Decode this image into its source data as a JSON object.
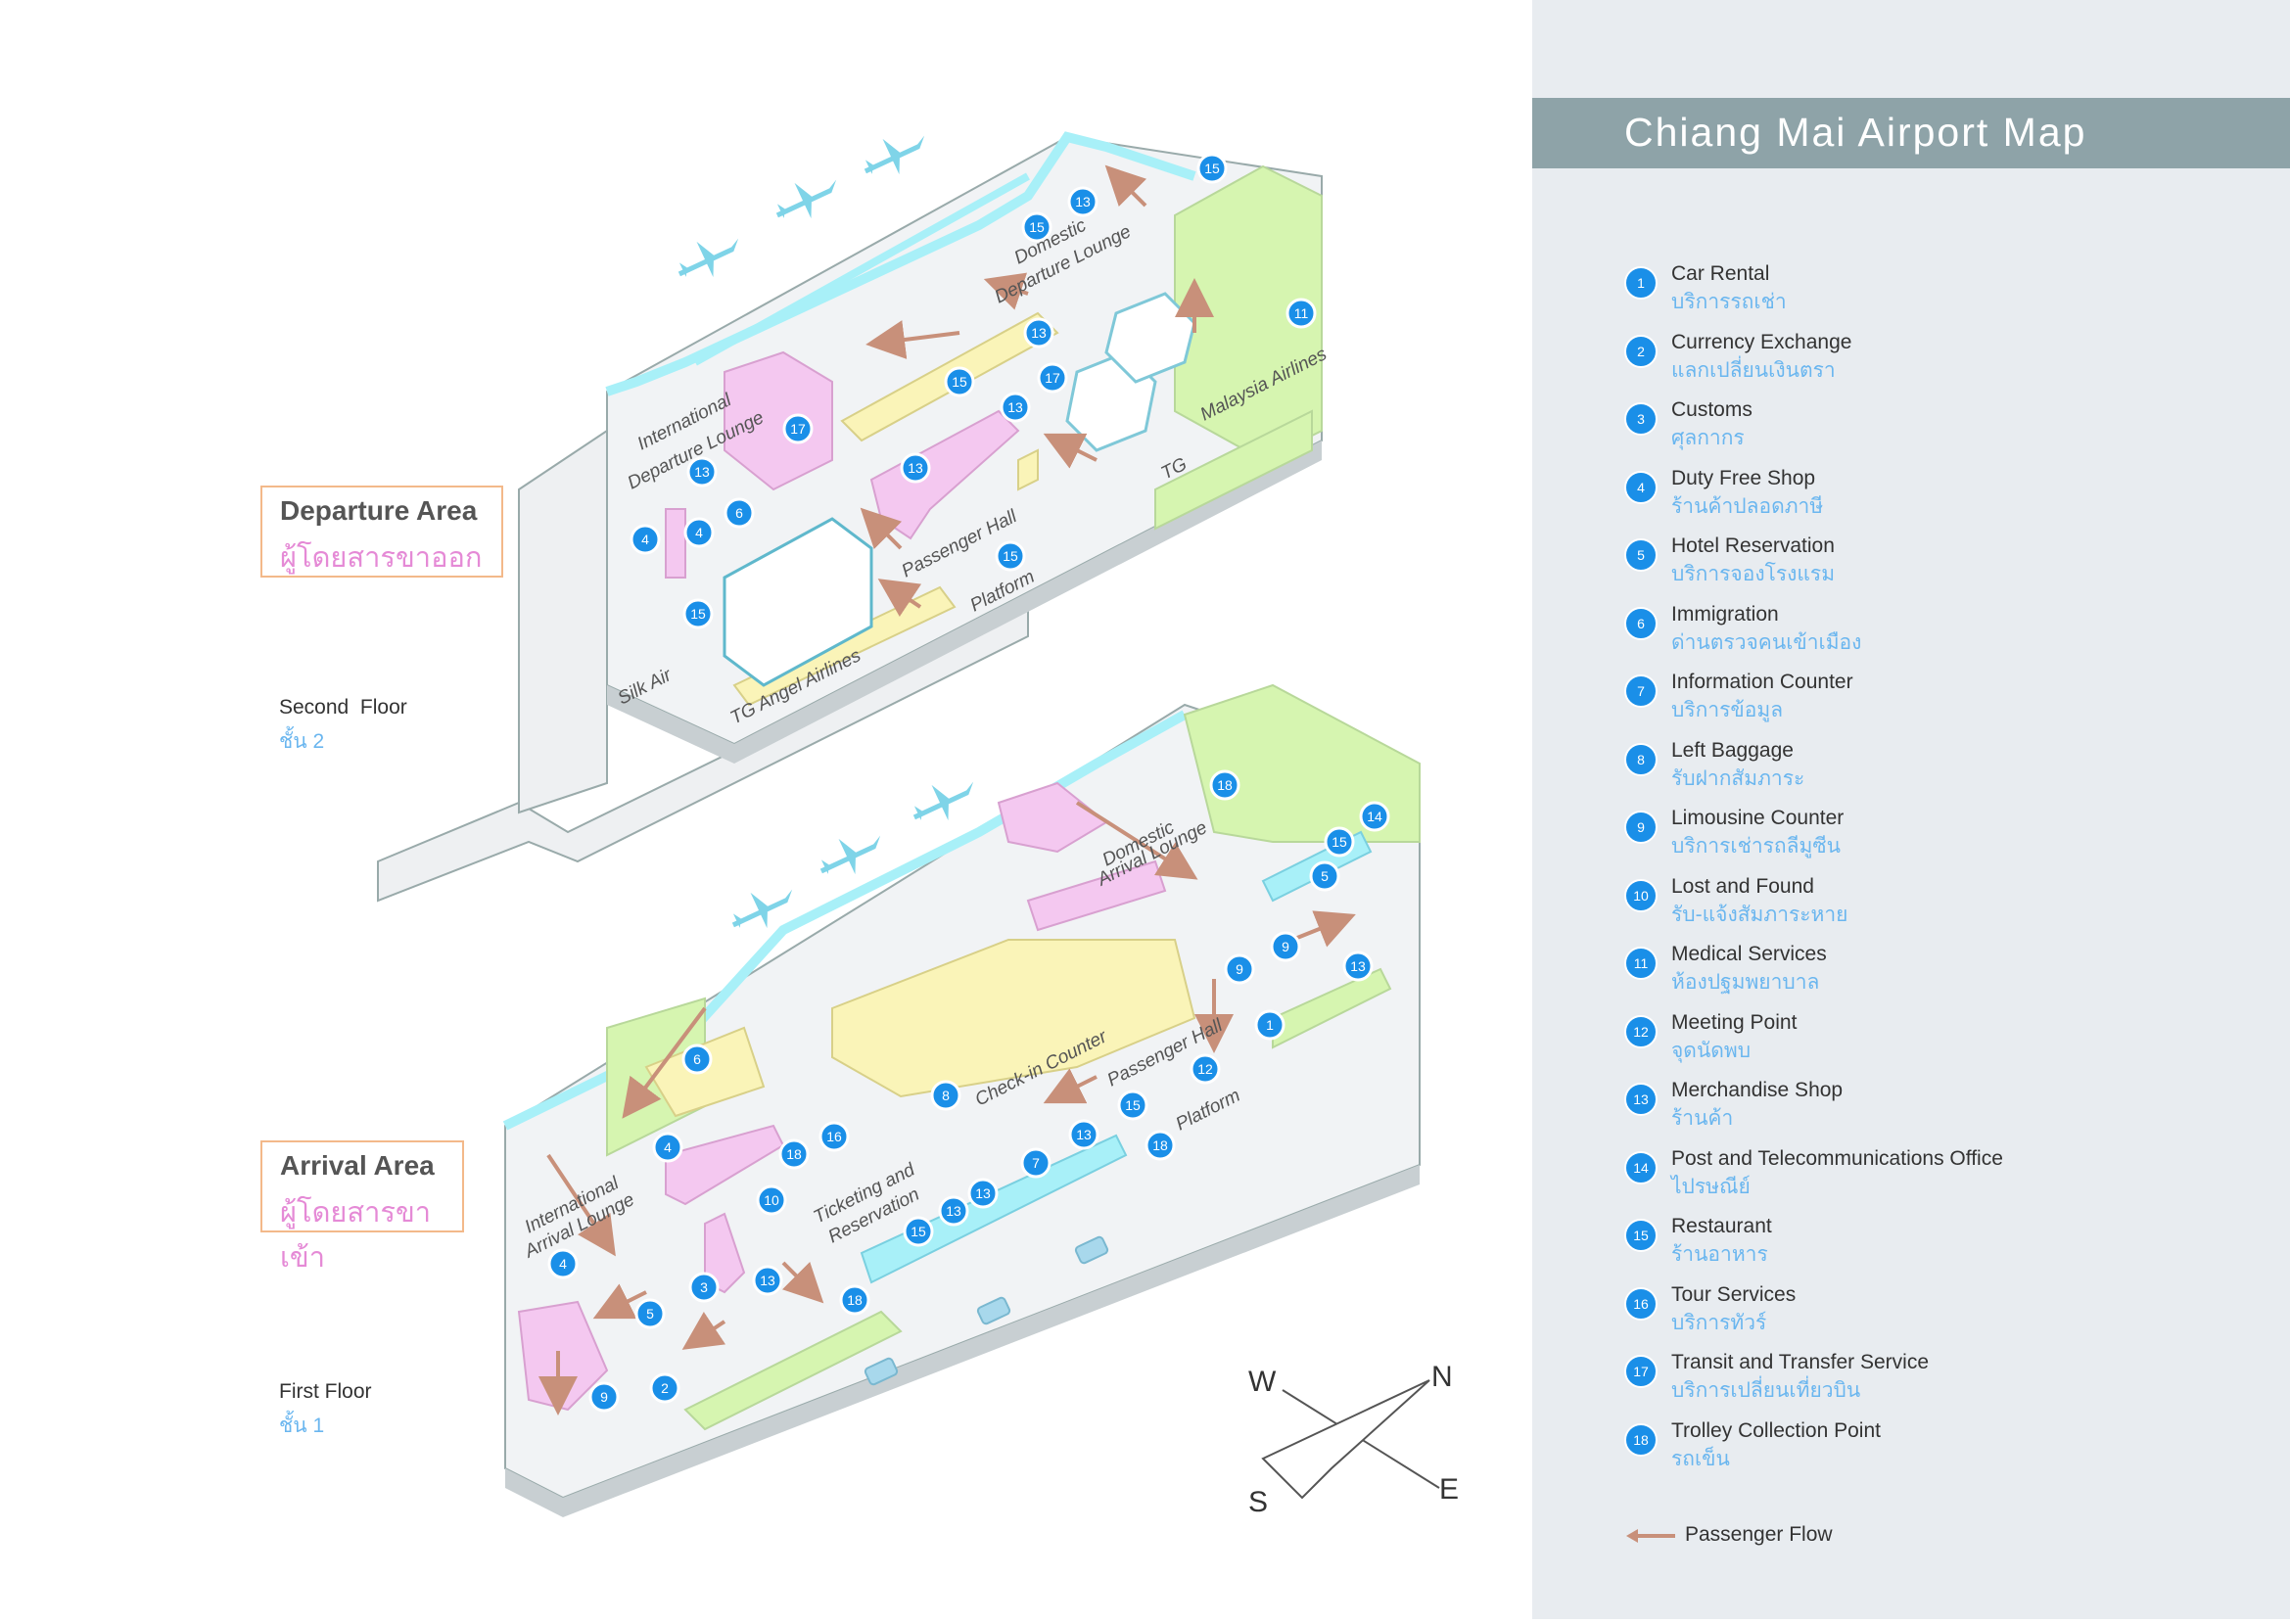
{
  "title": "Chiang Mai Airport Map",
  "departure": {
    "title": "Departure Area",
    "subtitle": "ผู้โดยสารขาออก",
    "floor": "Second  Floor",
    "floor_th": "ชั้น 2"
  },
  "arrival": {
    "title": "Arrival Area",
    "subtitle": "ผู้โดยสารขาเข้า",
    "floor": "First Floor",
    "floor_th": "ชั้น 1"
  },
  "compass": {
    "w": "W",
    "n": "N",
    "s": "S",
    "e": "E"
  },
  "colors": {
    "marker": "#1a8fe8",
    "arrow": "#c8907a",
    "green": "#d6f5b0",
    "yellow": "#faf4b8",
    "pink": "#f4c8f0",
    "cyan": "#a8f0f8",
    "sidebar": "#e8ecf0",
    "title_bar": "#8ea3a8"
  },
  "legend": [
    {
      "num": "1",
      "en": "Car Rental",
      "th": "บริการรถเช่า"
    },
    {
      "num": "2",
      "en": "Currency Exchange",
      "th": "แลกเปลี่ยนเงินตรา"
    },
    {
      "num": "3",
      "en": "Customs",
      "th": "ศุลกากร"
    },
    {
      "num": "4",
      "en": "Duty Free Shop",
      "th": "ร้านค้าปลอดภาษี"
    },
    {
      "num": "5",
      "en": "Hotel Reservation",
      "th": "บริการจองโรงแรม"
    },
    {
      "num": "6",
      "en": "Immigration",
      "th": "ด่านตรวจคนเข้าเมือง"
    },
    {
      "num": "7",
      "en": "Information Counter",
      "th": "บริการข้อมูล"
    },
    {
      "num": "8",
      "en": "Left Baggage",
      "th": "รับฝากสัมภาระ"
    },
    {
      "num": "9",
      "en": "Limousine Counter",
      "th": "บริการเช่ารถลีมูซีน"
    },
    {
      "num": "10",
      "en": "Lost and Found",
      "th": "รับ-แจ้งสัมภาระหาย"
    },
    {
      "num": "11",
      "en": "Medical Services",
      "th": "ห้องปฐมพยาบาล"
    },
    {
      "num": "12",
      "en": "Meeting Point",
      "th": "จุดนัดพบ"
    },
    {
      "num": "13",
      "en": "Merchandise Shop",
      "th": "ร้านค้า"
    },
    {
      "num": "14",
      "en": "Post and Telecommunications Office",
      "th": "ไปรษณีย์"
    },
    {
      "num": "15",
      "en": "Restaurant",
      "th": "ร้านอาหาร"
    },
    {
      "num": "16",
      "en": "Tour Services",
      "th": "บริการทัวร์"
    },
    {
      "num": "17",
      "en": "Transit and Transfer Service",
      "th": "บริการเปลี่ยนเที่ยวบิน"
    },
    {
      "num": "18",
      "en": "Trolley Collection Point",
      "th": "รถเข็น"
    }
  ],
  "flow_label": "Passenger Flow",
  "upper_labels": [
    {
      "text": "Domestic",
      "rot": -27
    },
    {
      "text": "Departure Lounge",
      "rot": -27
    },
    {
      "text": "International",
      "rot": -27
    },
    {
      "text": "Departure Lounge",
      "rot": -27
    },
    {
      "text": "Malaysia Airlines",
      "rot": -27
    },
    {
      "text": "TG",
      "rot": -27
    },
    {
      "text": "Passenger Hall",
      "rot": -27
    },
    {
      "text": "Platform",
      "rot": -27
    },
    {
      "text": "Silk Air",
      "rot": -27
    },
    {
      "text": "TG Angel Airlines",
      "rot": -27
    }
  ],
  "lower_labels": [
    {
      "text": "Domestic",
      "rot": -27
    },
    {
      "text": "Arrival Lounge",
      "rot": -27
    },
    {
      "text": "Check-in Counter",
      "rot": -27
    },
    {
      "text": "Passenger Hall",
      "rot": -27
    },
    {
      "text": "Platform",
      "rot": -27
    },
    {
      "text": "Ticketing and",
      "rot": -27
    },
    {
      "text": "Reservation",
      "rot": -27
    },
    {
      "text": "International",
      "rot": -27
    },
    {
      "text": "Arrival Lounge",
      "rot": -27
    }
  ],
  "upper_markers": [
    "15",
    "13",
    "15",
    "13",
    "17",
    "15",
    "13",
    "11",
    "17",
    "13",
    "13",
    "6",
    "4",
    "4",
    "15",
    "15"
  ],
  "lower_markers": [
    "18",
    "14",
    "15",
    "5",
    "9",
    "9",
    "13",
    "1",
    "12",
    "6",
    "4",
    "16",
    "18",
    "8",
    "15",
    "18",
    "7",
    "13",
    "13",
    "13",
    "10",
    "15",
    "13",
    "3",
    "18",
    "5",
    "4",
    "2",
    "9"
  ]
}
